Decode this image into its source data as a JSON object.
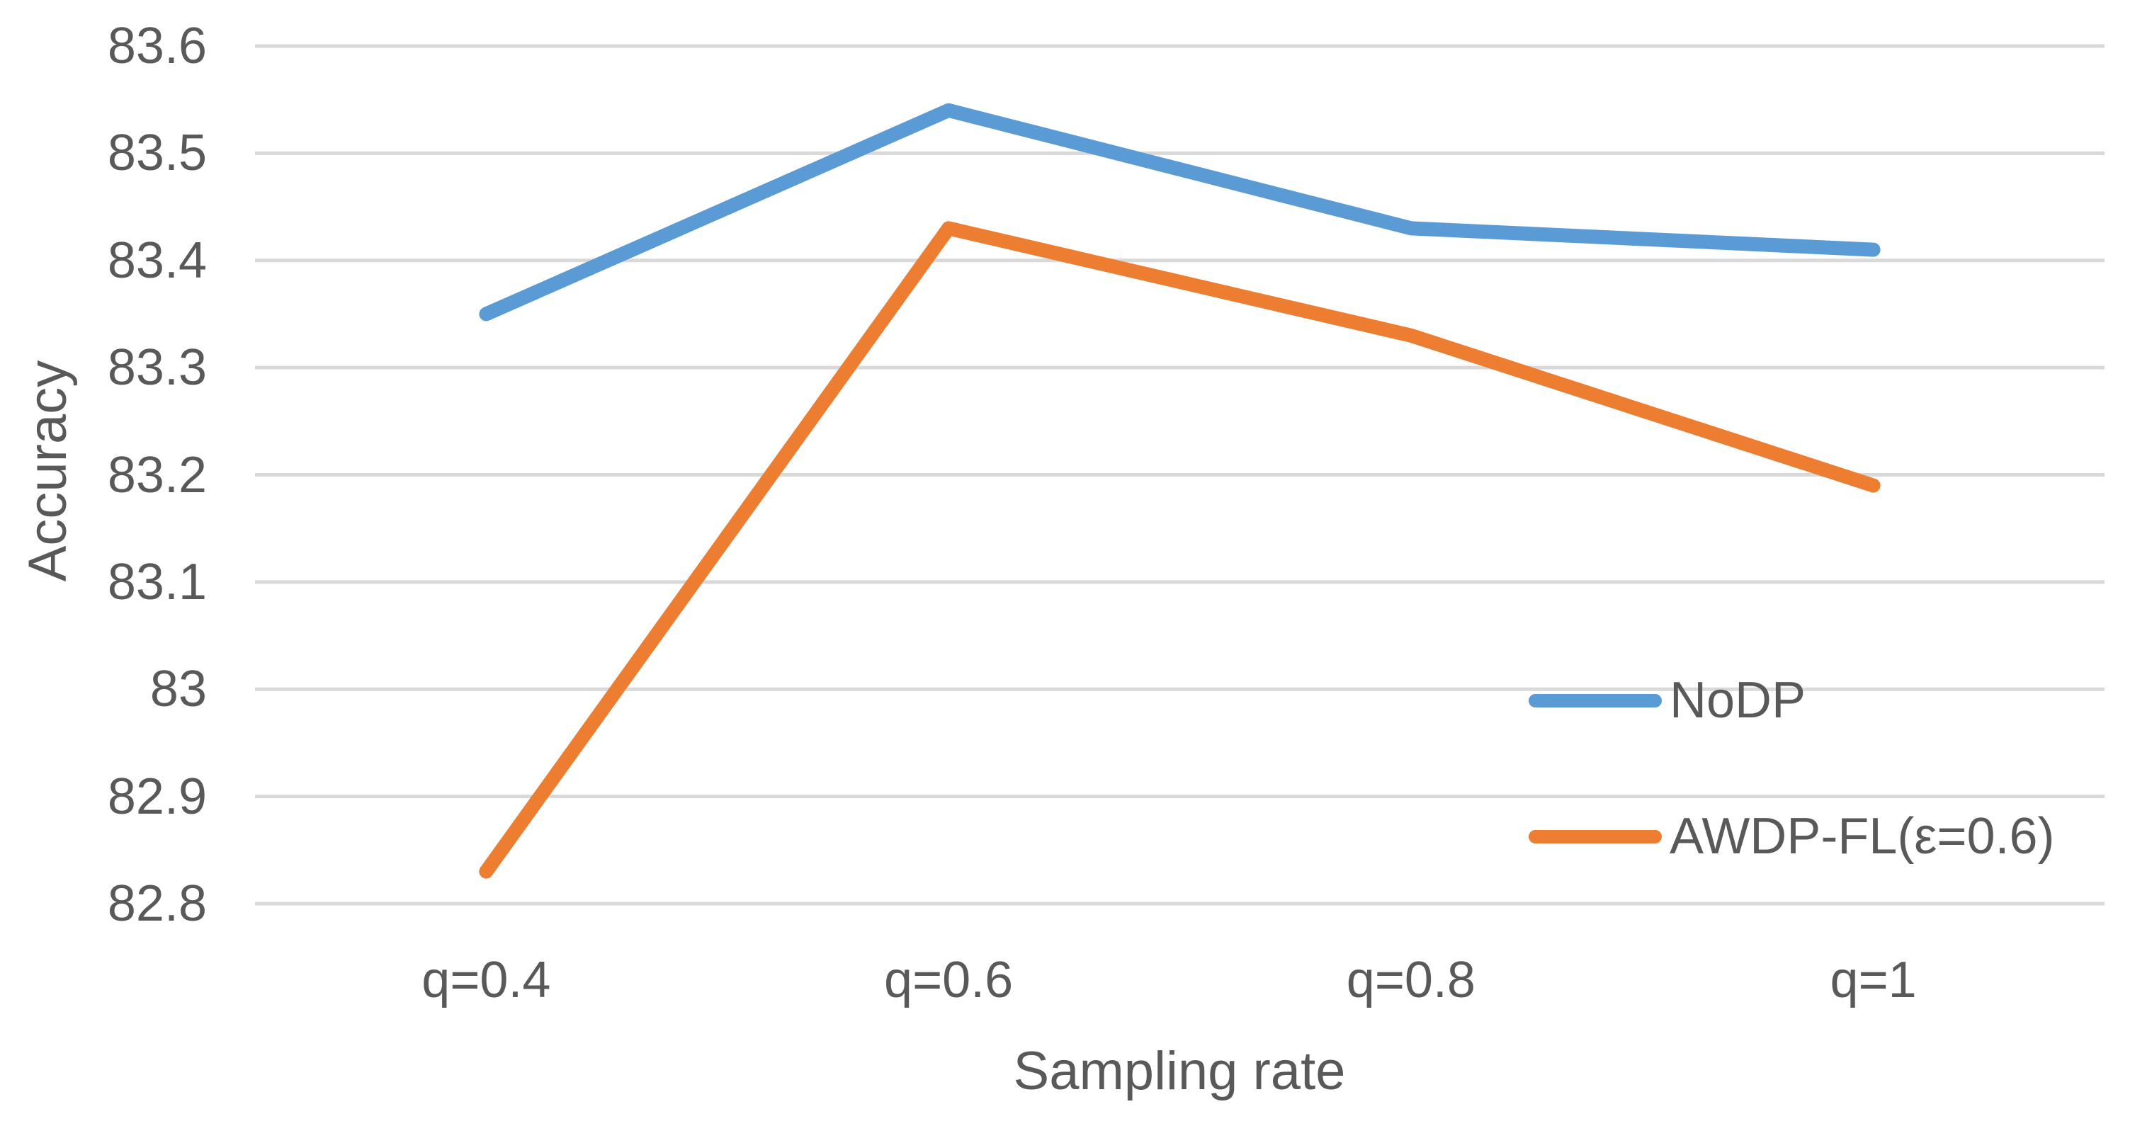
{
  "chart_data": {
    "type": "line",
    "title": "",
    "xlabel": "Sampling rate",
    "ylabel": "Accuracy",
    "categories": [
      "q=0.4",
      "q=0.6",
      "q=0.8",
      "q=1"
    ],
    "series": [
      {
        "name": "NoDP",
        "color": "#5B9BD5",
        "values": [
          83.35,
          83.54,
          83.43,
          83.41
        ]
      },
      {
        "name": "AWDP-FL(ε=0.6)",
        "color": "#ED7D31",
        "values": [
          82.83,
          83.43,
          83.33,
          83.19
        ]
      }
    ],
    "ylim": [
      82.8,
      83.6
    ],
    "y_tick_step": 0.1,
    "y_ticks": [
      "83.6",
      "83.5",
      "83.4",
      "83.3",
      "83.2",
      "83.1",
      "83",
      "82.9",
      "82.8"
    ],
    "grid": "horizontal",
    "legend_position": "inside-right",
    "colors": {
      "gridline": "#D9D9D9",
      "axis_text": "#595959"
    }
  }
}
